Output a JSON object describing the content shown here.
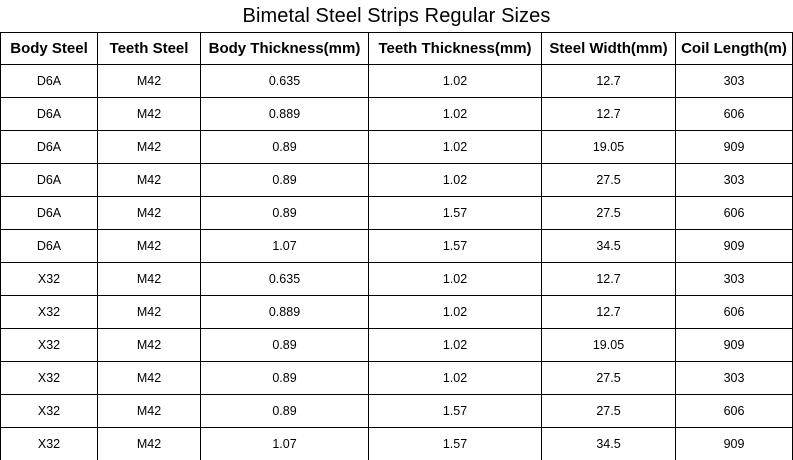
{
  "title": "Bimetal Steel Strips Regular Sizes",
  "columns": [
    "Body Steel",
    "Teeth Steel",
    "Body Thickness(mm)",
    "Teeth Thickness(mm)",
    "Steel Width(mm)",
    "Coil Length(m)"
  ],
  "rows": [
    [
      "D6A",
      "M42",
      "0.635",
      "1.02",
      "12.7",
      "303"
    ],
    [
      "D6A",
      "M42",
      "0.889",
      "1.02",
      "12.7",
      "606"
    ],
    [
      "D6A",
      "M42",
      "0.89",
      "1.02",
      "19.05",
      "909"
    ],
    [
      "D6A",
      "M42",
      "0.89",
      "1.02",
      "27.5",
      "303"
    ],
    [
      "D6A",
      "M42",
      "0.89",
      "1.57",
      "27.5",
      "606"
    ],
    [
      "D6A",
      "M42",
      "1.07",
      "1.57",
      "34.5",
      "909"
    ],
    [
      "X32",
      "M42",
      "0.635",
      "1.02",
      "12.7",
      "303"
    ],
    [
      "X32",
      "M42",
      "0.889",
      "1.02",
      "12.7",
      "606"
    ],
    [
      "X32",
      "M42",
      "0.89",
      "1.02",
      "19.05",
      "909"
    ],
    [
      "X32",
      "M42",
      "0.89",
      "1.02",
      "27.5",
      "303"
    ],
    [
      "X32",
      "M42",
      "0.89",
      "1.57",
      "27.5",
      "606"
    ],
    [
      "X32",
      "M42",
      "1.07",
      "1.57",
      "34.5",
      "909"
    ]
  ]
}
